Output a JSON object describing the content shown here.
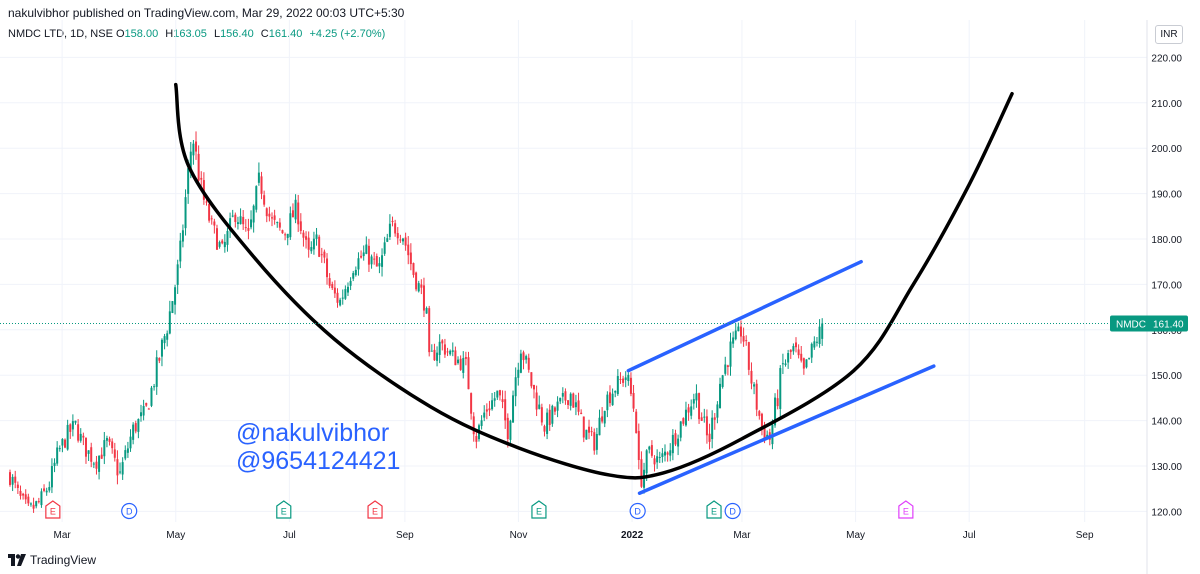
{
  "header": {
    "published": "nakulvibhor published on TradingView.com, Mar 29, 2022 00:03 UTC+5:30"
  },
  "legend": {
    "symbol": "NMDC LTD, 1D, NSE",
    "open_label": "O",
    "open": "158.00",
    "high_label": "H",
    "high": "163.05",
    "low_label": "L",
    "low": "156.40",
    "close_label": "C",
    "close": "161.40",
    "change": "+4.25 (+2.70%)"
  },
  "currency_button": "INR",
  "price_tag": {
    "symbol": "NMDC",
    "value": "161.40"
  },
  "watermark": {
    "line1": "@nakulvibhor",
    "line2": "@9654124421"
  },
  "brand": "TradingView",
  "colors": {
    "up": "#089981",
    "down": "#f23645",
    "trend": "#2962ff",
    "curve": "#000000",
    "last_price": "#089981",
    "earnings": "#089981",
    "dividend": "#2962ff",
    "future_event": "#e040fb"
  },
  "chart_data": {
    "type": "candlestick",
    "title": "",
    "ylim": [
      118,
      224
    ],
    "y_ticks": [
      "220.00",
      "210.00",
      "200.00",
      "190.00",
      "180.00",
      "170.00",
      "160.00",
      "150.00",
      "140.00",
      "130.00",
      "120.00"
    ],
    "x_ticks": [
      "Mar",
      "May",
      "Jul",
      "Sep",
      "Nov",
      "2022",
      "Mar",
      "May",
      "Jul",
      "Sep"
    ],
    "x_range": [
      "2021-02-01",
      "2022-09-30"
    ],
    "last_price": 161.4,
    "close_path": [
      [
        "2021-02-01",
        128
      ],
      [
        "2021-02-06",
        123
      ],
      [
        "2021-02-11",
        120
      ],
      [
        "2021-02-17",
        122
      ],
      [
        "2021-02-22",
        126
      ],
      [
        "2021-02-27",
        133
      ],
      [
        "2021-03-04",
        137
      ],
      [
        "2021-03-08",
        139
      ],
      [
        "2021-03-13",
        134
      ],
      [
        "2021-03-19",
        131
      ],
      [
        "2021-03-25",
        135
      ],
      [
        "2021-04-01",
        128
      ],
      [
        "2021-04-08",
        138
      ],
      [
        "2021-04-15",
        142
      ],
      [
        "2021-04-20",
        150
      ],
      [
        "2021-04-27",
        162
      ],
      [
        "2021-05-03",
        175
      ],
      [
        "2021-05-07",
        192
      ],
      [
        "2021-05-10",
        203
      ],
      [
        "2021-05-15",
        190
      ],
      [
        "2021-05-20",
        183
      ],
      [
        "2021-05-26",
        177
      ],
      [
        "2021-06-02",
        186
      ],
      [
        "2021-06-09",
        180
      ],
      [
        "2021-06-15",
        193
      ],
      [
        "2021-06-21",
        184
      ],
      [
        "2021-06-28",
        181
      ],
      [
        "2021-07-05",
        187
      ],
      [
        "2021-07-11",
        176
      ],
      [
        "2021-07-16",
        180
      ],
      [
        "2021-07-23",
        169
      ],
      [
        "2021-07-28",
        166
      ],
      [
        "2021-08-04",
        174
      ],
      [
        "2021-08-11",
        177
      ],
      [
        "2021-08-18",
        173
      ],
      [
        "2021-08-25",
        183
      ],
      [
        "2021-08-31",
        181
      ],
      [
        "2021-09-06",
        172
      ],
      [
        "2021-09-11",
        167
      ],
      [
        "2021-09-13",
        162
      ],
      [
        "2021-09-14",
        153
      ],
      [
        "2021-09-20",
        157
      ],
      [
        "2021-09-27",
        154
      ],
      [
        "2021-10-04",
        152
      ],
      [
        "2021-10-09",
        136
      ],
      [
        "2021-10-14",
        142
      ],
      [
        "2021-10-21",
        146
      ],
      [
        "2021-10-26",
        138
      ],
      [
        "2021-11-02",
        157
      ],
      [
        "2021-11-08",
        148
      ],
      [
        "2021-11-15",
        139
      ],
      [
        "2021-11-22",
        143
      ],
      [
        "2021-11-29",
        146
      ],
      [
        "2021-12-06",
        138
      ],
      [
        "2021-12-12",
        135
      ],
      [
        "2021-12-17",
        144
      ],
      [
        "2021-12-24",
        148
      ],
      [
        "2021-12-29",
        150
      ],
      [
        "2022-01-03",
        141
      ],
      [
        "2022-01-05",
        126
      ],
      [
        "2022-01-10",
        133
      ],
      [
        "2022-01-16",
        131
      ],
      [
        "2022-01-22",
        135
      ],
      [
        "2022-01-29",
        141
      ],
      [
        "2022-02-04",
        146
      ],
      [
        "2022-02-11",
        135
      ],
      [
        "2022-02-17",
        148
      ],
      [
        "2022-02-23",
        156
      ],
      [
        "2022-03-01",
        160
      ],
      [
        "2022-03-07",
        147
      ],
      [
        "2022-03-12",
        138
      ],
      [
        "2022-03-16",
        136
      ],
      [
        "2022-03-23",
        152
      ],
      [
        "2022-03-29",
        156
      ],
      [
        "2022-04-03",
        150
      ],
      [
        "2022-04-09",
        157
      ],
      [
        "2022-04-14",
        161.4
      ]
    ],
    "drawings": [
      {
        "type": "freehand-curve",
        "name": "cup-curve",
        "color": "#000000",
        "points": [
          [
            "2021-05-01",
            214
          ],
          [
            "2021-05-08",
            196
          ],
          [
            "2021-06-12",
            176
          ],
          [
            "2021-07-25",
            158
          ],
          [
            "2021-09-15",
            143
          ],
          [
            "2021-11-01",
            134
          ],
          [
            "2021-12-20",
            128
          ],
          [
            "2022-01-18",
            128.5
          ],
          [
            "2022-03-01",
            136
          ],
          [
            "2022-04-30",
            151
          ],
          [
            "2022-06-01",
            170
          ],
          [
            "2022-07-01",
            192
          ],
          [
            "2022-07-24",
            212
          ]
        ]
      },
      {
        "type": "trendline",
        "name": "upper-trend-line",
        "color": "#2962ff",
        "points": [
          [
            "2021-12-30",
            151
          ],
          [
            "2022-05-04",
            175
          ]
        ]
      },
      {
        "type": "trendline",
        "name": "lower-trend-line",
        "color": "#2962ff",
        "points": [
          [
            "2022-01-05",
            124
          ],
          [
            "2022-06-12",
            152
          ]
        ]
      }
    ],
    "events": [
      {
        "type": "E",
        "date": "2021-02-24",
        "color": "#f23645"
      },
      {
        "type": "D",
        "date": "2021-04-06",
        "color": "#2962ff"
      },
      {
        "type": "E",
        "date": "2021-06-28",
        "color": "#089981"
      },
      {
        "type": "E",
        "date": "2021-08-16",
        "color": "#f23645"
      },
      {
        "type": "E",
        "date": "2021-11-12",
        "color": "#089981"
      },
      {
        "type": "D",
        "date": "2022-01-04",
        "color": "#2962ff"
      },
      {
        "type": "E",
        "date": "2022-02-14",
        "color": "#089981"
      },
      {
        "type": "D",
        "date": "2022-02-24",
        "color": "#2962ff"
      },
      {
        "type": "E",
        "date": "2022-05-28",
        "color": "#e040fb"
      }
    ]
  }
}
